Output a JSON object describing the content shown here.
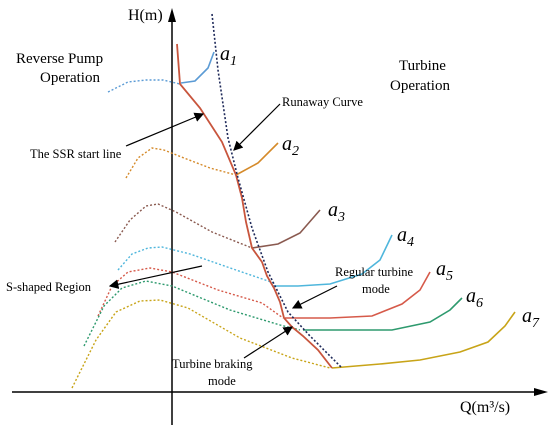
{
  "axes": {
    "y_label": "H(m)",
    "x_label": "Q(m³/s)"
  },
  "regions": {
    "left_title_line1": "Reverse Pump",
    "left_title_line2": "Operation",
    "right_title_line1": "Turbine",
    "right_title_line2": "Operation"
  },
  "annotations": {
    "runaway_curve": "Runaway Curve",
    "ssr_start_line": "The SSR start line",
    "s_shaped_region": "S-shaped Region",
    "regular_turbine_line1": "Regular turbine",
    "regular_turbine_line2": "mode",
    "turbine_braking_line1": "Turbine braking",
    "turbine_braking_line2": "mode"
  },
  "curves": [
    {
      "label": "a",
      "sub": "1",
      "color": "#5b9bd5"
    },
    {
      "label": "a",
      "sub": "2",
      "color": "#d58a2a"
    },
    {
      "label": "a",
      "sub": "3",
      "color": "#8a5a50"
    },
    {
      "label": "a",
      "sub": "4",
      "color": "#4fb6dc"
    },
    {
      "label": "a",
      "sub": "5",
      "color": "#d65a4a"
    },
    {
      "label": "a",
      "sub": "6",
      "color": "#2e9a6e"
    },
    {
      "label": "a",
      "sub": "7",
      "color": "#c8a418"
    }
  ],
  "colors": {
    "ssr_line": "#c8553d",
    "runaway_curve": "#1f2a5a",
    "axis": "#000000"
  }
}
